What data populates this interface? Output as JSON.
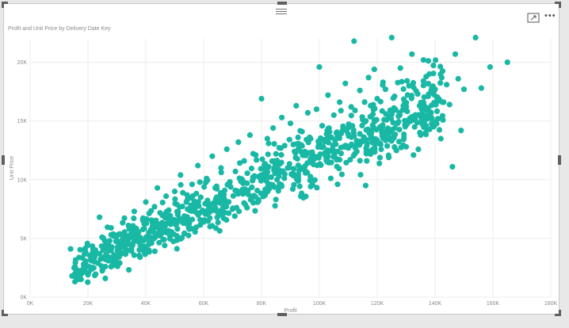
{
  "visual": {
    "title": "Profit and Unit Price by Delivery Date Key",
    "more_label": "•••"
  },
  "colors": {
    "accent": "#19b8a5",
    "grid": "#ececec",
    "frame_border": "#c8c8c8"
  },
  "icons": {
    "move": "drag-handle-icon",
    "focus": "focus-mode-icon",
    "more": "more-options-icon"
  },
  "chart_data": {
    "type": "scatter",
    "title": "Profit and Unit Price by Delivery Date Key",
    "xlabel": "Profit",
    "ylabel": "Unit Price",
    "xlim": [
      0,
      180000
    ],
    "ylim": [
      0,
      22000
    ],
    "x_ticks": [
      "0K",
      "20K",
      "40K",
      "60K",
      "80K",
      "100K",
      "120K",
      "140K",
      "160K",
      "180K"
    ],
    "y_ticks": [
      "0K",
      "5K",
      "10K",
      "15K",
      "20K"
    ],
    "grid": true,
    "legend": "none",
    "point_count_estimate": 1000,
    "trend": {
      "description": "strong positive linear relationship",
      "approx_y_at_x_20000": 3000,
      "approx_y_at_x_140000": 16500
    },
    "points": [
      [
        14000,
        4100
      ],
      [
        14500,
        1800
      ],
      [
        15500,
        2600
      ],
      [
        17000,
        2100
      ],
      [
        18500,
        2800
      ],
      [
        20000,
        1900
      ],
      [
        21000,
        3200
      ],
      [
        22000,
        2500
      ],
      [
        23000,
        3700
      ],
      [
        24000,
        6800
      ],
      [
        25000,
        2300
      ],
      [
        26000,
        4300
      ],
      [
        27000,
        3100
      ],
      [
        28000,
        5900
      ],
      [
        29000,
        3600
      ],
      [
        30000,
        4800
      ],
      [
        31000,
        2900
      ],
      [
        32000,
        5200
      ],
      [
        33000,
        3900
      ],
      [
        34000,
        6100
      ],
      [
        35000,
        4400
      ],
      [
        36000,
        7300
      ],
      [
        37000,
        5000
      ],
      [
        38000,
        3400
      ],
      [
        39000,
        6600
      ],
      [
        40000,
        8100
      ],
      [
        41000,
        5500
      ],
      [
        42000,
        4600
      ],
      [
        43000,
        7700
      ],
      [
        44000,
        9300
      ],
      [
        45000,
        6000
      ],
      [
        46000,
        4900
      ],
      [
        47000,
        8600
      ],
      [
        48000,
        6800
      ],
      [
        49000,
        5400
      ],
      [
        50000,
        9000
      ],
      [
        51000,
        7200
      ],
      [
        52000,
        10400
      ],
      [
        53000,
        6300
      ],
      [
        54000,
        8100
      ],
      [
        55000,
        5800
      ],
      [
        56000,
        9600
      ],
      [
        57000,
        7600
      ],
      [
        58000,
        11200
      ],
      [
        59000,
        8500
      ],
      [
        60000,
        6400
      ],
      [
        61000,
        10100
      ],
      [
        62000,
        7900
      ],
      [
        63000,
        12000
      ],
      [
        64000,
        9300
      ],
      [
        65000,
        6900
      ],
      [
        66000,
        11000
      ],
      [
        67000,
        8700
      ],
      [
        68000,
        12600
      ],
      [
        69000,
        9800
      ],
      [
        70000,
        7500
      ],
      [
        71000,
        10700
      ],
      [
        72000,
        13200
      ],
      [
        73000,
        8900
      ],
      [
        74000,
        11600
      ],
      [
        75000,
        9700
      ],
      [
        76000,
        13800
      ],
      [
        77000,
        10200
      ],
      [
        78000,
        12100
      ],
      [
        79000,
        8300
      ],
      [
        80000,
        16900
      ],
      [
        81000,
        11300
      ],
      [
        82000,
        13500
      ],
      [
        83000,
        9600
      ],
      [
        84000,
        14400
      ],
      [
        85000,
        12200
      ],
      [
        86000,
        10300
      ],
      [
        87000,
        15300
      ],
      [
        88000,
        12900
      ],
      [
        89000,
        11000
      ],
      [
        90000,
        14800
      ],
      [
        91000,
        13000
      ],
      [
        92000,
        16300
      ],
      [
        93000,
        10800
      ],
      [
        94000,
        14100
      ],
      [
        95000,
        12400
      ],
      [
        96000,
        15700
      ],
      [
        97000,
        13500
      ],
      [
        98000,
        11300
      ],
      [
        99000,
        16000
      ],
      [
        100000,
        19600
      ],
      [
        101000,
        14600
      ],
      [
        102000,
        12300
      ],
      [
        103000,
        17200
      ],
      [
        104000,
        13600
      ],
      [
        105000,
        15500
      ],
      [
        106000,
        11700
      ],
      [
        107000,
        16600
      ],
      [
        108000,
        14200
      ],
      [
        109000,
        18200
      ],
      [
        110000,
        12700
      ],
      [
        111000,
        16200
      ],
      [
        112000,
        21800
      ],
      [
        113000,
        13300
      ],
      [
        114000,
        17600
      ],
      [
        115000,
        15100
      ],
      [
        116000,
        9500
      ],
      [
        117000,
        18700
      ],
      [
        118000,
        14000
      ],
      [
        119000,
        19400
      ],
      [
        120000,
        16900
      ],
      [
        121000,
        13100
      ],
      [
        122000,
        18300
      ],
      [
        123000,
        15600
      ],
      [
        124000,
        11900
      ],
      [
        125000,
        22100
      ],
      [
        126000,
        17100
      ],
      [
        127000,
        14800
      ],
      [
        128000,
        19500
      ],
      [
        129000,
        16300
      ],
      [
        130000,
        12800
      ],
      [
        131000,
        18000
      ],
      [
        132000,
        20700
      ],
      [
        133000,
        15300
      ],
      [
        134000,
        17300
      ],
      [
        135000,
        13800
      ],
      [
        136000,
        20200
      ],
      [
        137000,
        16000
      ],
      [
        138000,
        19000
      ],
      [
        139000,
        14500
      ],
      [
        140000,
        17700
      ],
      [
        141000,
        15200
      ],
      [
        142000,
        13500
      ],
      [
        143000,
        16600
      ],
      [
        144000,
        18100
      ],
      [
        145000,
        16400
      ],
      [
        146000,
        11100
      ],
      [
        147000,
        20700
      ],
      [
        148000,
        18600
      ],
      [
        149000,
        14200
      ],
      [
        150000,
        17700
      ],
      [
        154000,
        22100
      ],
      [
        156000,
        17800
      ],
      [
        159000,
        19600
      ],
      [
        165000,
        20000
      ]
    ]
  }
}
